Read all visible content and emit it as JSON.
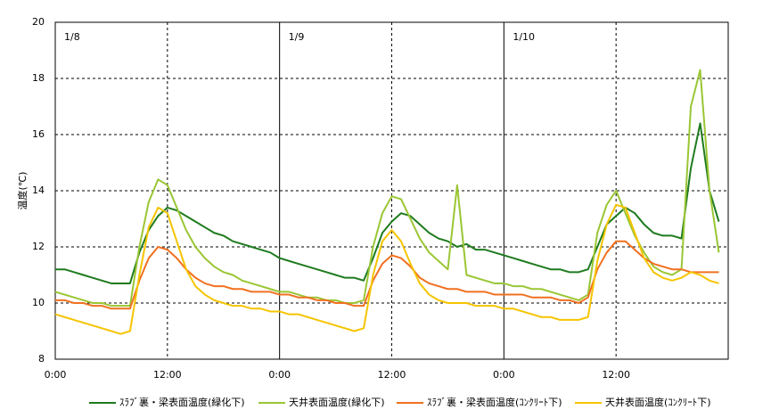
{
  "chart_data": {
    "type": "line",
    "ylabel": "温度(℃)",
    "annotations": [
      "1/8",
      "1/9",
      "1/10"
    ],
    "x": [
      0,
      1,
      2,
      3,
      4,
      5,
      6,
      7,
      8,
      9,
      10,
      11,
      12,
      13,
      14,
      15,
      16,
      17,
      18,
      19,
      20,
      21,
      22,
      23,
      24,
      25,
      26,
      27,
      28,
      29,
      30,
      31,
      32,
      33,
      34,
      35,
      36,
      37,
      38,
      39,
      40,
      41,
      42,
      43,
      44,
      45,
      46,
      47,
      48,
      49,
      50,
      51,
      52,
      53,
      54,
      55,
      56,
      57,
      58,
      59,
      60,
      61,
      62,
      63,
      64,
      65,
      66,
      67,
      68,
      69,
      70,
      71
    ],
    "xlim": [
      0,
      72
    ],
    "xticks": [
      {
        "value": 0,
        "label": "0:00"
      },
      {
        "value": 12,
        "label": "12:00"
      },
      {
        "value": 24,
        "label": "0:00"
      },
      {
        "value": 36,
        "label": "12:00"
      },
      {
        "value": 48,
        "label": "0:00"
      },
      {
        "value": 60,
        "label": "12:00"
      }
    ],
    "ylim": [
      8,
      20
    ],
    "yticks": [
      8,
      10,
      12,
      14,
      16,
      18,
      20
    ],
    "grid": true,
    "legend": "bottom",
    "series": [
      {
        "name": "ｽﾗﾌﾞ裏・梁表面温度(緑化下)",
        "color": "#1e7b1e",
        "values": [
          11.2,
          11.2,
          11.1,
          11.0,
          10.9,
          10.8,
          10.7,
          10.7,
          10.7,
          11.8,
          12.6,
          13.1,
          13.4,
          13.3,
          13.1,
          12.9,
          12.7,
          12.5,
          12.4,
          12.2,
          12.1,
          12.0,
          11.9,
          11.8,
          11.6,
          11.5,
          11.4,
          11.3,
          11.2,
          11.1,
          11.0,
          10.9,
          10.9,
          10.8,
          11.6,
          12.5,
          12.9,
          13.2,
          13.1,
          12.8,
          12.5,
          12.3,
          12.2,
          12.0,
          12.1,
          11.9,
          11.9,
          11.8,
          11.7,
          11.6,
          11.5,
          11.4,
          11.3,
          11.2,
          11.2,
          11.1,
          11.1,
          11.2,
          12.0,
          12.8,
          13.1,
          13.4,
          13.2,
          12.8,
          12.5,
          12.4,
          12.4,
          12.3,
          14.8,
          16.4,
          14.0,
          12.9
        ]
      },
      {
        "name": "天井表面温度(緑化下)",
        "color": "#9ac634",
        "values": [
          10.4,
          10.3,
          10.2,
          10.1,
          10.0,
          10.0,
          9.9,
          9.9,
          9.9,
          12.0,
          13.6,
          14.4,
          14.2,
          13.4,
          12.6,
          12.0,
          11.6,
          11.3,
          11.1,
          11.0,
          10.8,
          10.7,
          10.6,
          10.5,
          10.4,
          10.4,
          10.3,
          10.2,
          10.2,
          10.1,
          10.1,
          10.0,
          10.0,
          10.1,
          12.0,
          13.2,
          13.8,
          13.7,
          13.0,
          12.3,
          11.8,
          11.5,
          11.2,
          14.2,
          11.0,
          10.9,
          10.8,
          10.7,
          10.7,
          10.6,
          10.6,
          10.5,
          10.5,
          10.4,
          10.3,
          10.2,
          10.1,
          10.3,
          12.5,
          13.5,
          14.0,
          13.2,
          12.4,
          11.8,
          11.3,
          11.1,
          11.0,
          11.2,
          17.0,
          18.3,
          14.0,
          11.8
        ]
      },
      {
        "name": "ｽﾗﾌﾞ裏・梁表面温度(ｺﾝｸﾘｰﾄ下)",
        "color": "#f07020",
        "values": [
          10.1,
          10.1,
          10.0,
          10.0,
          9.9,
          9.9,
          9.8,
          9.8,
          9.8,
          10.8,
          11.6,
          12.0,
          11.9,
          11.6,
          11.2,
          10.9,
          10.7,
          10.6,
          10.6,
          10.5,
          10.5,
          10.4,
          10.4,
          10.4,
          10.3,
          10.3,
          10.2,
          10.2,
          10.1,
          10.1,
          10.0,
          10.0,
          9.9,
          9.9,
          10.8,
          11.4,
          11.7,
          11.6,
          11.3,
          10.9,
          10.7,
          10.6,
          10.5,
          10.5,
          10.4,
          10.4,
          10.4,
          10.3,
          10.3,
          10.3,
          10.3,
          10.2,
          10.2,
          10.2,
          10.1,
          10.1,
          10.0,
          10.2,
          11.2,
          11.8,
          12.2,
          12.2,
          11.9,
          11.6,
          11.4,
          11.3,
          11.2,
          11.2,
          11.1,
          11.1,
          11.1,
          11.1
        ]
      },
      {
        "name": "天井表面温度(ｺﾝｸﾘｰﾄ下)",
        "color": "#f5c400",
        "values": [
          9.6,
          9.5,
          9.4,
          9.3,
          9.2,
          9.1,
          9.0,
          8.9,
          9.0,
          11.0,
          12.7,
          13.4,
          13.2,
          12.2,
          11.2,
          10.6,
          10.3,
          10.1,
          10.0,
          9.9,
          9.9,
          9.8,
          9.8,
          9.7,
          9.7,
          9.6,
          9.6,
          9.5,
          9.4,
          9.3,
          9.2,
          9.1,
          9.0,
          9.1,
          11.0,
          12.2,
          12.6,
          12.2,
          11.4,
          10.7,
          10.3,
          10.1,
          10.0,
          10.0,
          10.0,
          9.9,
          9.9,
          9.9,
          9.8,
          9.8,
          9.7,
          9.6,
          9.5,
          9.5,
          9.4,
          9.4,
          9.4,
          9.5,
          11.5,
          12.8,
          13.5,
          13.4,
          12.5,
          11.6,
          11.1,
          10.9,
          10.8,
          10.9,
          11.1,
          11.0,
          10.8,
          10.7
        ]
      }
    ]
  }
}
